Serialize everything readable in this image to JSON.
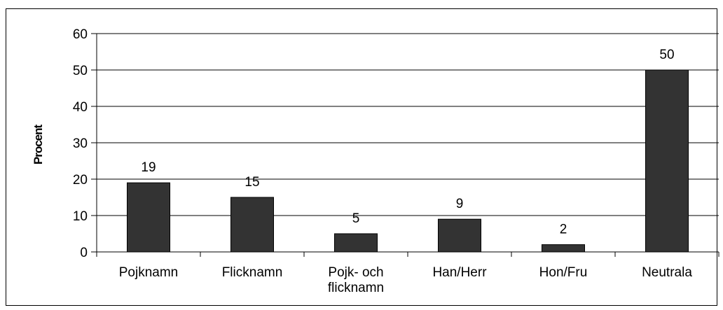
{
  "chart_data": {
    "type": "bar",
    "categories": [
      [
        "Pojknamn"
      ],
      [
        "Flicknamn"
      ],
      [
        "Pojk- och",
        "flicknamn"
      ],
      [
        "Han/Herr"
      ],
      [
        "Hon/Fru"
      ],
      [
        "Neutrala"
      ]
    ],
    "values": [
      19,
      15,
      5,
      9,
      2,
      50
    ],
    "data_labels": [
      "19",
      "15",
      "5",
      "9",
      "2",
      "50"
    ],
    "ylabel": "Procent",
    "ylim": [
      0,
      60
    ],
    "yticks": [
      0,
      10,
      20,
      30,
      40,
      50,
      60
    ],
    "ytick_labels": [
      "0",
      "10",
      "20",
      "30",
      "40",
      "50",
      "60"
    ],
    "grid": true,
    "legend": false,
    "bar_color": "#333333"
  }
}
